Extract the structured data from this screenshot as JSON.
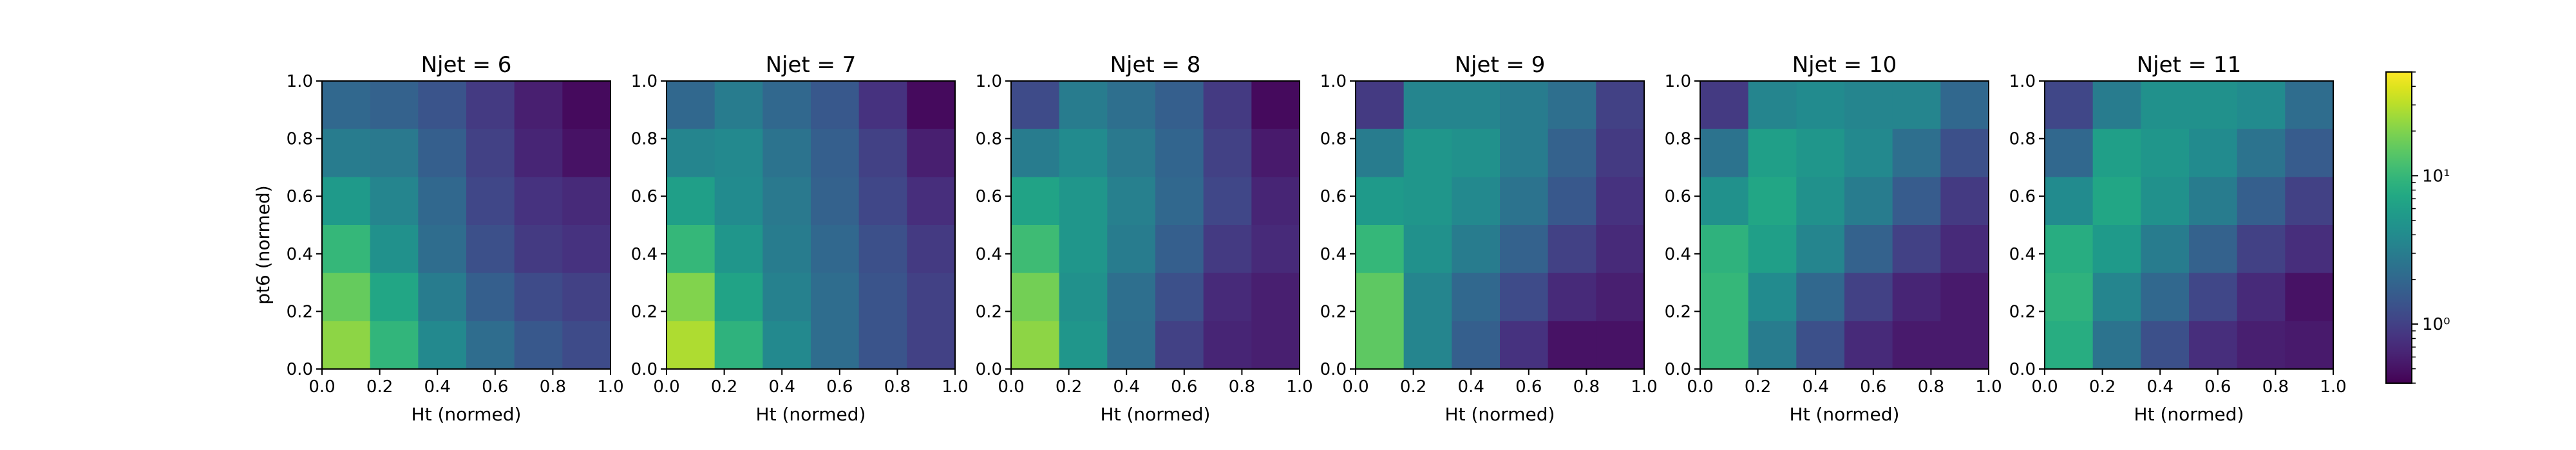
{
  "chart_data": {
    "type": "heatmap",
    "ylabel": "pt6 (normed)",
    "colorbar": {
      "scale": "log",
      "colormap": "viridis",
      "range": [
        0.4,
        50
      ],
      "tick_labels": [
        {
          "value": 1,
          "label": "10⁰"
        },
        {
          "value": 10,
          "label": "10¹"
        }
      ]
    },
    "x_ticks": [
      "0.0",
      "0.2",
      "0.4",
      "0.6",
      "0.8",
      "1.0"
    ],
    "y_ticks": [
      "0.0",
      "0.2",
      "0.4",
      "0.6",
      "0.8",
      "1.0"
    ],
    "xlim": [
      0,
      1
    ],
    "ylim": [
      0,
      1
    ],
    "grid": false,
    "panels": [
      {
        "title": "Njet = 6",
        "xlabel": "Ht (normed)",
        "rows_top_to_bottom": [
          [
            2.0,
            1.8,
            1.4,
            0.9,
            0.6,
            0.45
          ],
          [
            3.0,
            2.8,
            1.7,
            1.0,
            0.65,
            0.5
          ],
          [
            5.5,
            3.5,
            2.0,
            1.1,
            0.8,
            0.7
          ],
          [
            10.0,
            4.5,
            2.2,
            1.3,
            0.9,
            0.8
          ],
          [
            16.0,
            7.0,
            3.0,
            1.7,
            1.2,
            1.0
          ],
          [
            22.0,
            9.5,
            3.8,
            2.2,
            1.5,
            1.2
          ]
        ]
      },
      {
        "title": "Njet = 7",
        "xlabel": "Ht (normed)",
        "rows_top_to_bottom": [
          [
            2.0,
            3.0,
            2.0,
            1.5,
            0.8,
            0.45
          ],
          [
            3.5,
            3.8,
            2.5,
            1.7,
            1.0,
            0.6
          ],
          [
            6.0,
            4.0,
            2.8,
            1.8,
            1.1,
            0.75
          ],
          [
            10.0,
            5.0,
            3.0,
            2.0,
            1.3,
            0.9
          ],
          [
            20.0,
            6.5,
            3.3,
            2.2,
            1.4,
            1.0
          ],
          [
            28.0,
            9.0,
            3.8,
            2.2,
            1.4,
            1.0
          ]
        ]
      },
      {
        "title": "Njet = 8",
        "xlabel": "Ht (normed)",
        "rows_top_to_bottom": [
          [
            1.2,
            3.0,
            2.3,
            1.7,
            0.9,
            0.45
          ],
          [
            3.0,
            4.0,
            2.8,
            1.9,
            1.0,
            0.55
          ],
          [
            6.5,
            5.0,
            3.2,
            2.0,
            1.1,
            0.65
          ],
          [
            11.0,
            5.0,
            3.0,
            1.7,
            0.9,
            0.7
          ],
          [
            18.0,
            4.5,
            2.3,
            1.3,
            0.7,
            0.6
          ],
          [
            22.0,
            5.0,
            2.2,
            1.0,
            0.65,
            0.6
          ]
        ]
      },
      {
        "title": "Njet = 9",
        "xlabel": "Ht (normed)",
        "rows_top_to_bottom": [
          [
            0.9,
            3.5,
            3.5,
            3.0,
            2.3,
            1.0
          ],
          [
            3.0,
            5.0,
            4.5,
            3.0,
            1.8,
            0.9
          ],
          [
            5.5,
            5.0,
            3.8,
            2.5,
            1.5,
            0.8
          ],
          [
            10.0,
            4.5,
            3.0,
            1.8,
            1.0,
            0.7
          ],
          [
            15.0,
            3.5,
            2.0,
            1.2,
            0.7,
            0.6
          ],
          [
            15.0,
            3.5,
            1.7,
            0.8,
            0.5,
            0.5
          ]
        ]
      },
      {
        "title": "Njet = 10",
        "xlabel": "Ht (normed)",
        "rows_top_to_bottom": [
          [
            0.9,
            3.5,
            4.0,
            3.5,
            3.5,
            2.0
          ],
          [
            2.5,
            6.0,
            5.0,
            3.8,
            2.3,
            1.3
          ],
          [
            4.5,
            7.0,
            4.5,
            3.0,
            1.6,
            0.9
          ],
          [
            9.0,
            6.0,
            3.5,
            1.8,
            1.0,
            0.7
          ],
          [
            10.0,
            4.0,
            2.0,
            1.0,
            0.65,
            0.55
          ],
          [
            10.0,
            3.0,
            1.3,
            0.7,
            0.55,
            0.55
          ]
        ]
      },
      {
        "title": "Njet = 11",
        "xlabel": "Ht (normed)",
        "rows_top_to_bottom": [
          [
            1.1,
            3.0,
            4.5,
            4.5,
            4.0,
            2.2
          ],
          [
            2.0,
            6.0,
            5.0,
            4.0,
            2.5,
            1.6
          ],
          [
            4.0,
            7.0,
            4.5,
            3.0,
            1.7,
            1.0
          ],
          [
            8.0,
            5.5,
            3.0,
            1.8,
            1.0,
            0.75
          ],
          [
            9.0,
            3.5,
            2.0,
            1.1,
            0.7,
            0.5
          ],
          [
            8.0,
            2.5,
            1.3,
            0.75,
            0.6,
            0.55
          ]
        ]
      }
    ]
  }
}
